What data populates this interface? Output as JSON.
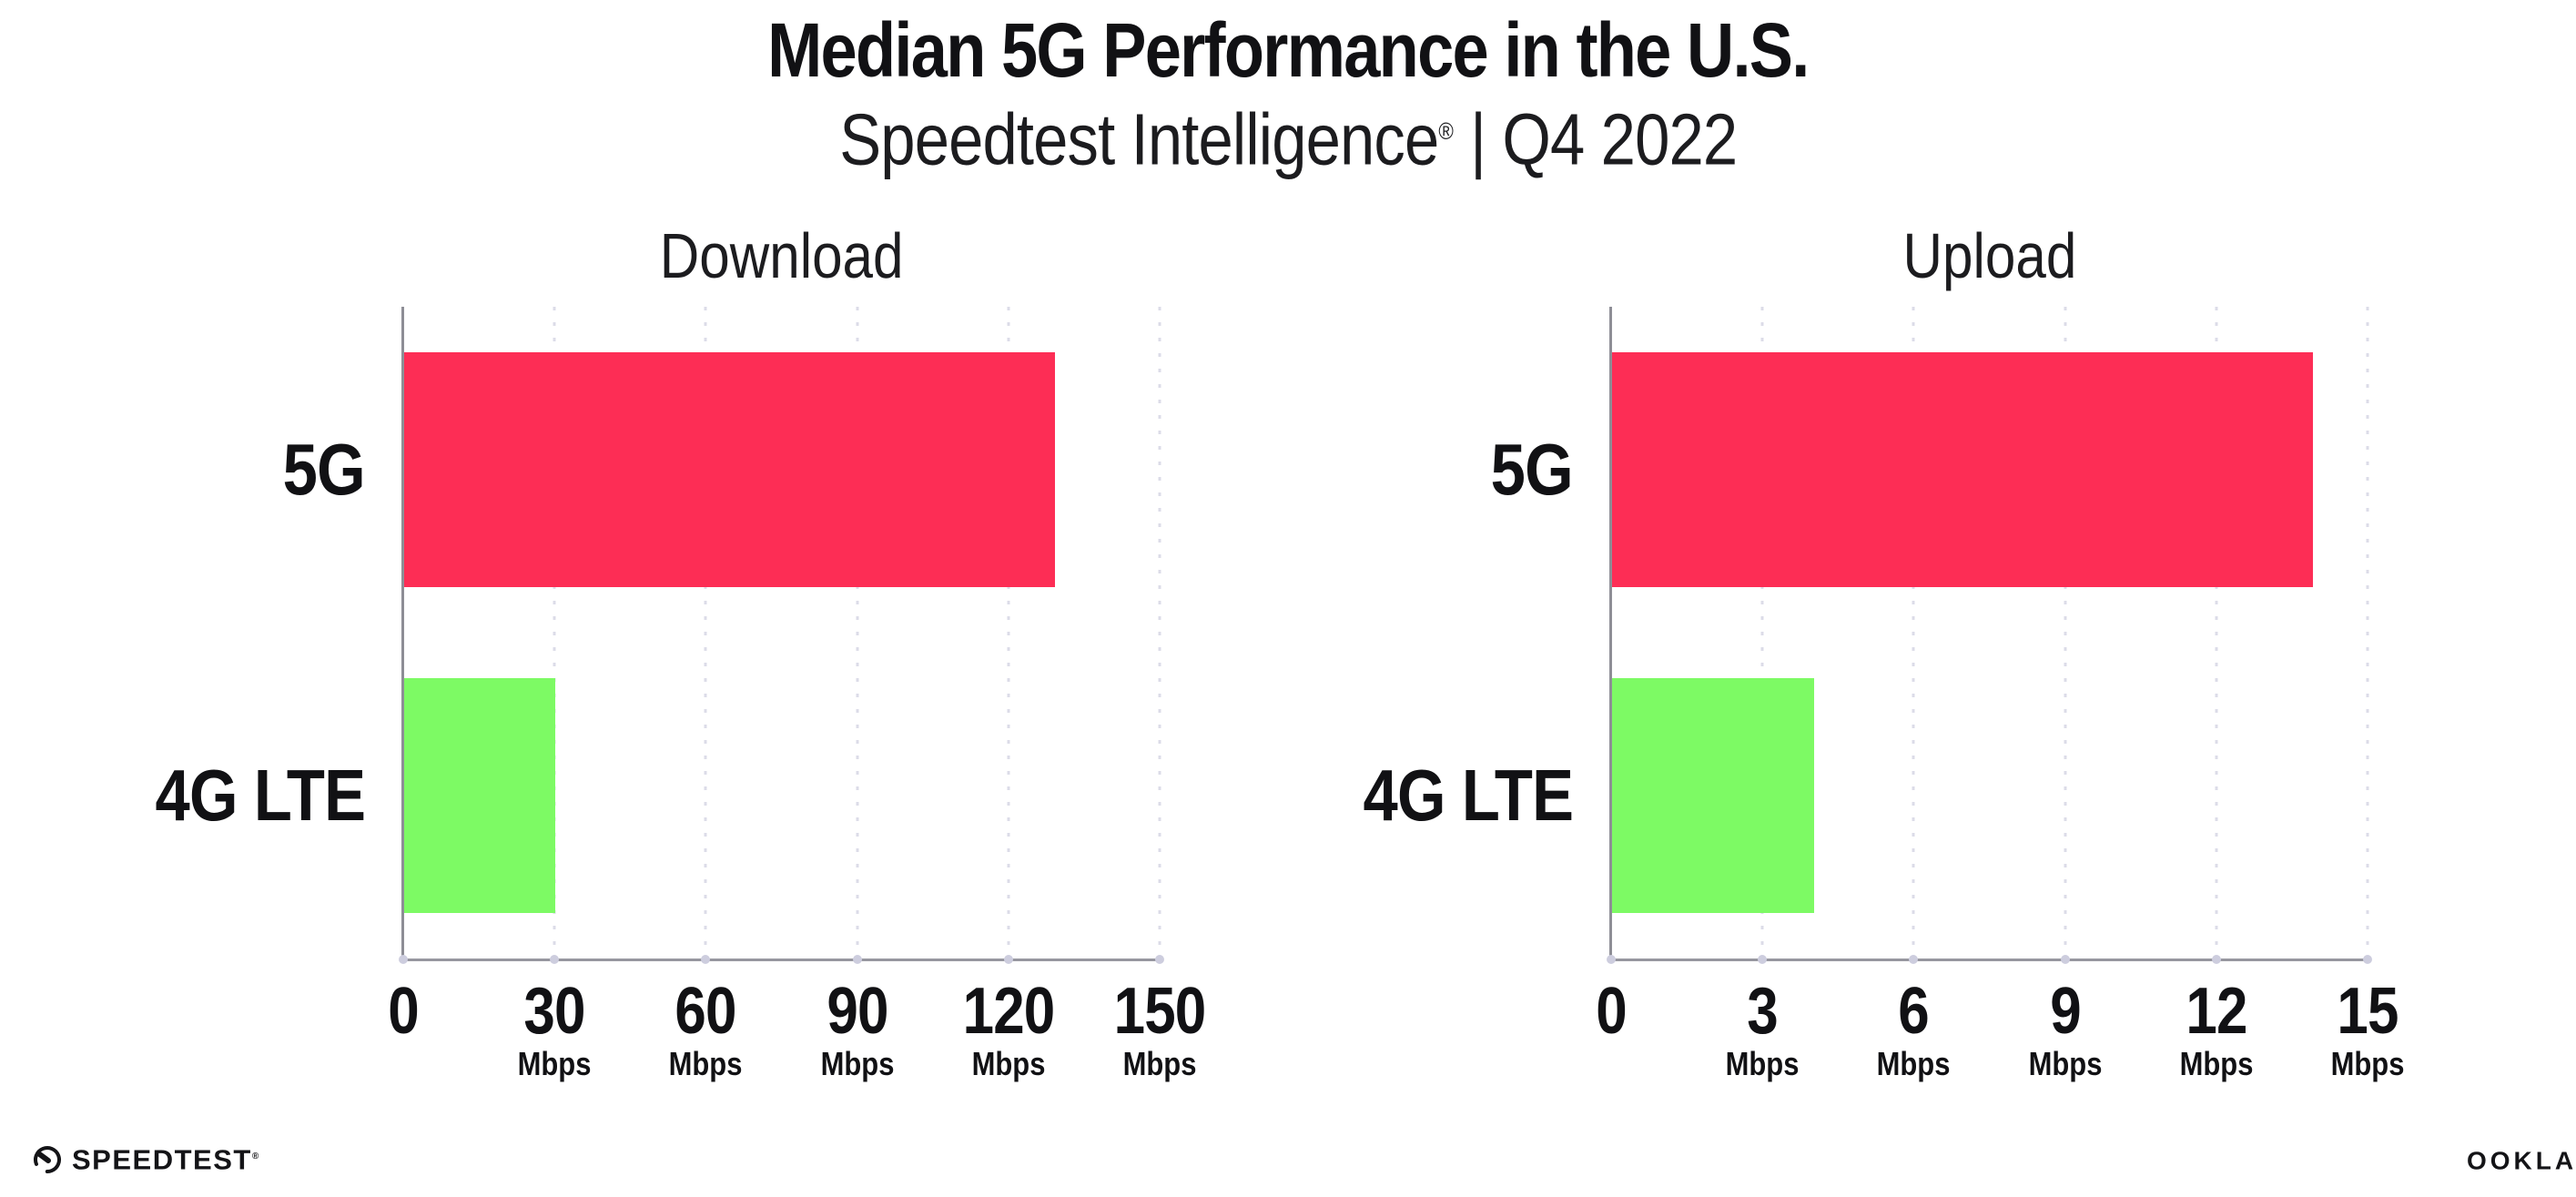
{
  "header": {
    "title": "Median 5G Performance in the U.S.",
    "subtitle_brand": "Speedtest Intelligence",
    "registered_mark": "®",
    "subtitle_rest": " | Q4 2022"
  },
  "colors": {
    "bar_5g": "#FD2D55",
    "bar_4g": "#7DFA64",
    "axis_line": "#97979F",
    "spine": "#8E8E96",
    "gridline": "#DCDCE8",
    "tick_dot": "#CDCDDE",
    "text": "#111114"
  },
  "chart_data": [
    {
      "type": "bar",
      "orientation": "horizontal",
      "title": "Download",
      "categories": [
        "5G",
        "4G LTE"
      ],
      "values": [
        129,
        30
      ],
      "unit": "Mbps",
      "xlim": [
        0,
        150
      ],
      "ticks": [
        0,
        30,
        60,
        90,
        120,
        150
      ],
      "grid": "dotted-vertical",
      "legend": "none",
      "bar_colors_ref": [
        "bar_5g",
        "bar_4g"
      ]
    },
    {
      "type": "bar",
      "orientation": "horizontal",
      "title": "Upload",
      "categories": [
        "5G",
        "4G LTE"
      ],
      "values": [
        13.9,
        4
      ],
      "unit": "Mbps",
      "xlim": [
        0,
        15
      ],
      "ticks": [
        0,
        3,
        6,
        9,
        12,
        15
      ],
      "grid": "dotted-vertical",
      "legend": "none",
      "bar_colors_ref": [
        "bar_5g",
        "bar_4g"
      ]
    }
  ],
  "footer": {
    "speedtest_label": "SPEEDTEST",
    "speedtest_mark": "®",
    "ookla_label": "OOKLA",
    "ookla_mark": "®"
  }
}
